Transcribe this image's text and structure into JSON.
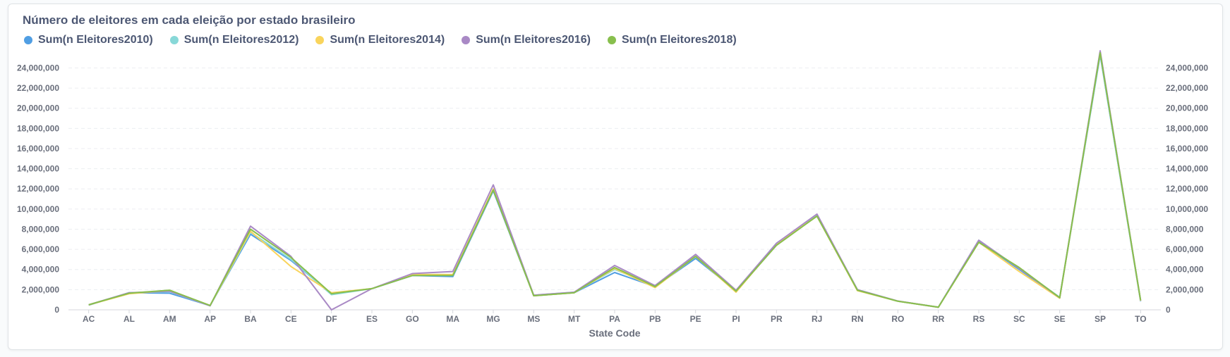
{
  "chart_data": {
    "type": "line",
    "title": "Número de eleitores em cada eleição por estado brasileiro",
    "xlabel": "State Code",
    "ylabel": "",
    "ylim": [
      0,
      25500000
    ],
    "y_ticks": [
      0,
      2000000,
      4000000,
      6000000,
      8000000,
      10000000,
      12000000,
      14000000,
      16000000,
      18000000,
      20000000,
      22000000,
      24000000
    ],
    "y_tick_labels": [
      "0",
      "2,000,000",
      "4,000,000",
      "6,000,000",
      "8,000,000",
      "10,000,000",
      "12,000,000",
      "14,000,000",
      "16,000,000",
      "18,000,000",
      "20,000,000",
      "22,000,000",
      "24,000,000"
    ],
    "grid": true,
    "legend_position": "top-left",
    "categories": [
      "AC",
      "AL",
      "AM",
      "AP",
      "BA",
      "CE",
      "DF",
      "ES",
      "GO",
      "MA",
      "MG",
      "MS",
      "MT",
      "PA",
      "PB",
      "PE",
      "PI",
      "PR",
      "RJ",
      "RN",
      "RO",
      "RR",
      "RS",
      "SC",
      "SE",
      "SP",
      "TO"
    ],
    "series": [
      {
        "name": "Sum(n Eleitores2010)",
        "color": "#509ee3",
        "values": [
          470000,
          1700000,
          1650000,
          420000,
          7500000,
          4900000,
          1600000,
          2100000,
          3400000,
          3300000,
          11800000,
          1400000,
          1700000,
          3700000,
          2300000,
          5100000,
          1900000,
          6500000,
          9300000,
          2000000,
          850000,
          250000,
          6800000,
          4000000,
          1200000,
          25300000,
          850000
        ]
      },
      {
        "name": "Sum(n Eleitores2012)",
        "color": "#88d8d8",
        "values": [
          480000,
          1700000,
          1800000,
          400000,
          7700000,
          5000000,
          1500000,
          2100000,
          3500000,
          3500000,
          11900000,
          1450000,
          1750000,
          4000000,
          2400000,
          5300000,
          1900000,
          6600000,
          9400000,
          2000000,
          860000,
          260000,
          6900000,
          4100000,
          1250000,
          25400000,
          900000
        ]
      },
      {
        "name": "Sum(n Eleitores2014)",
        "color": "#f9d45c",
        "values": [
          490000,
          1600000,
          1900000,
          420000,
          7800000,
          4300000,
          1700000,
          2100000,
          3500000,
          3500000,
          12000000,
          1400000,
          1700000,
          4100000,
          2200000,
          5300000,
          1750000,
          6500000,
          9300000,
          1900000,
          860000,
          250000,
          6700000,
          3800000,
          1150000,
          25600000,
          900000
        ]
      },
      {
        "name": "Sum(n Eleitores2016)",
        "color": "#a989c5",
        "values": [
          500000,
          1700000,
          1850000,
          400000,
          8300000,
          5300000,
          0,
          2100000,
          3600000,
          3800000,
          12400000,
          1450000,
          1750000,
          4400000,
          2400000,
          5500000,
          1950000,
          6600000,
          9500000,
          2000000,
          870000,
          260000,
          6900000,
          4100000,
          1200000,
          25700000,
          950000
        ]
      },
      {
        "name": "Sum(n Eleitores2018)",
        "color": "#88bf4d",
        "values": [
          500000,
          1650000,
          1950000,
          430000,
          8000000,
          5200000,
          1600000,
          2100000,
          3400000,
          3400000,
          11900000,
          1400000,
          1700000,
          4200000,
          2300000,
          5300000,
          1850000,
          6400000,
          9300000,
          1950000,
          850000,
          260000,
          6700000,
          4200000,
          1200000,
          25500000,
          950000
        ]
      }
    ]
  }
}
